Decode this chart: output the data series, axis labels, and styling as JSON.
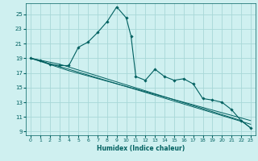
{
  "xlabel": "Humidex (Indice chaleur)",
  "background_color": "#cff0f0",
  "grid_color": "#a8d8d8",
  "line_color": "#006060",
  "xlim": [
    -0.5,
    23.5
  ],
  "ylim": [
    8.5,
    26.5
  ],
  "xticks": [
    0,
    1,
    2,
    3,
    4,
    5,
    6,
    7,
    8,
    9,
    10,
    11,
    12,
    13,
    14,
    15,
    16,
    17,
    18,
    19,
    20,
    21,
    22,
    23
  ],
  "yticks": [
    9,
    11,
    13,
    15,
    17,
    19,
    21,
    23,
    25
  ],
  "series": [
    [
      0,
      19
    ],
    [
      1,
      18.7
    ],
    [
      2,
      18.2
    ],
    [
      3,
      18.0
    ],
    [
      4,
      18.0
    ],
    [
      5,
      20.5
    ],
    [
      6,
      21.2
    ],
    [
      7,
      22.5
    ],
    [
      8,
      24.0
    ],
    [
      9,
      26.0
    ],
    [
      10,
      24.5
    ],
    [
      10.5,
      22.0
    ],
    [
      11,
      16.5
    ],
    [
      12,
      16.0
    ],
    [
      13,
      17.5
    ],
    [
      14,
      16.5
    ],
    [
      15,
      16.0
    ],
    [
      16,
      16.2
    ],
    [
      17,
      15.5
    ],
    [
      18,
      13.5
    ],
    [
      19,
      13.3
    ],
    [
      20,
      13.0
    ],
    [
      21,
      12.0
    ],
    [
      22,
      10.5
    ],
    [
      23,
      9.5
    ]
  ],
  "line2": [
    [
      0,
      19
    ],
    [
      3,
      18.2
    ],
    [
      4,
      17.8
    ],
    [
      22,
      10.5
    ],
    [
      23,
      9.5
    ]
  ],
  "line3": [
    [
      0,
      19
    ],
    [
      4,
      17.5
    ],
    [
      23,
      10.0
    ]
  ],
  "line4": [
    [
      0,
      19
    ],
    [
      4,
      17.3
    ],
    [
      23,
      10.5
    ]
  ],
  "marker_series": [
    [
      0,
      19
    ],
    [
      1,
      18.7
    ],
    [
      2,
      18.2
    ],
    [
      3,
      18.0
    ],
    [
      4,
      18.0
    ],
    [
      5,
      20.5
    ],
    [
      6,
      21.2
    ],
    [
      7,
      22.5
    ],
    [
      8,
      24.0
    ],
    [
      9,
      26.0
    ],
    [
      10,
      24.5
    ],
    [
      11,
      16.5
    ],
    [
      12,
      16.0
    ],
    [
      13,
      17.5
    ],
    [
      14,
      16.5
    ],
    [
      15,
      16.0
    ],
    [
      16,
      16.2
    ],
    [
      17,
      15.5
    ],
    [
      18,
      13.5
    ],
    [
      19,
      13.3
    ],
    [
      20,
      13.0
    ],
    [
      21,
      12.0
    ],
    [
      22,
      10.5
    ],
    [
      23,
      9.5
    ]
  ]
}
